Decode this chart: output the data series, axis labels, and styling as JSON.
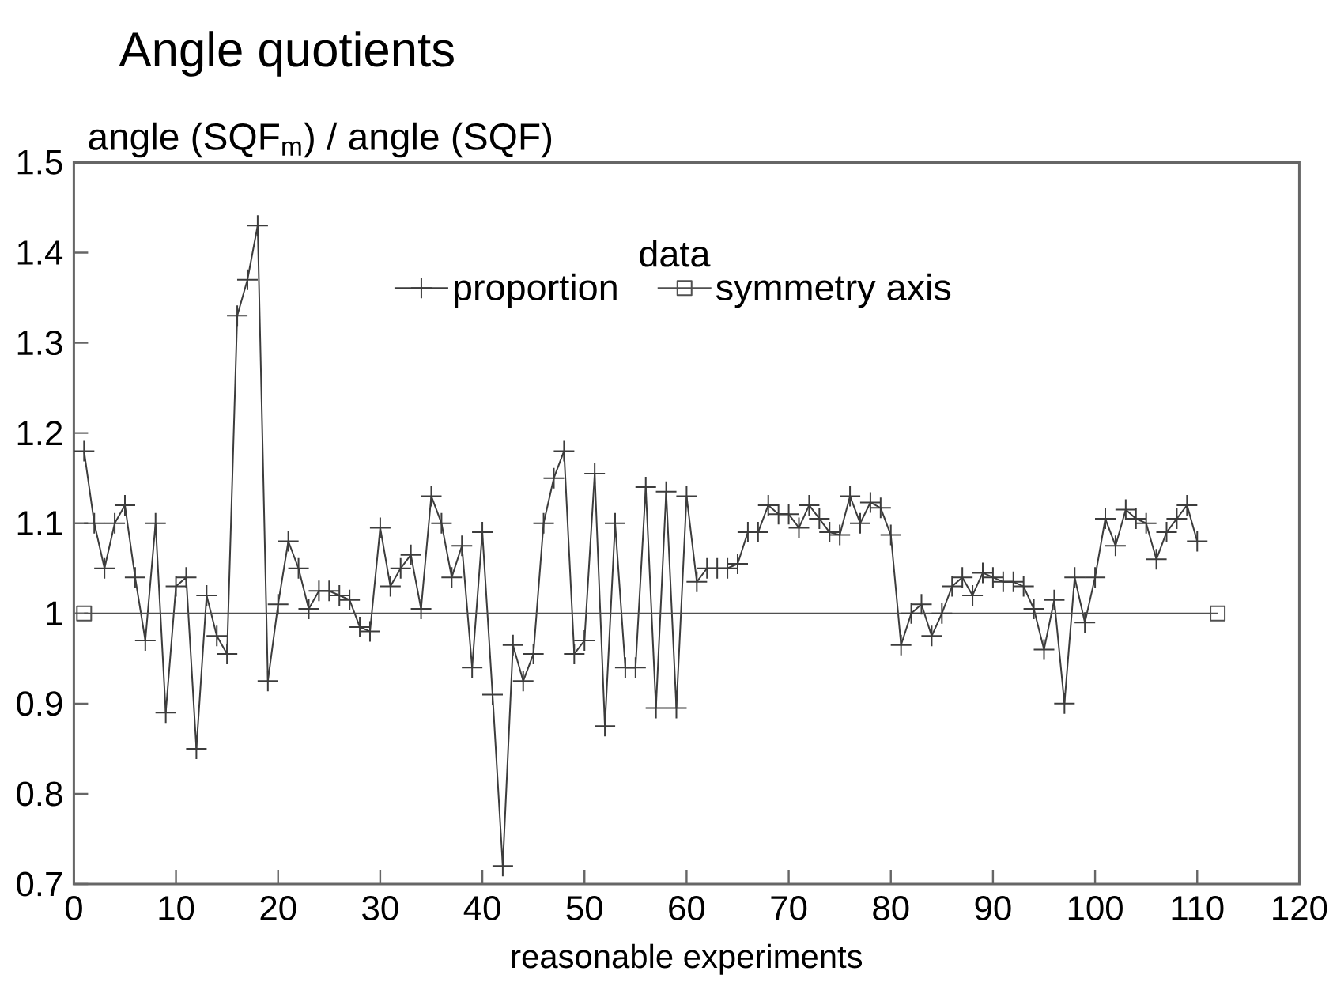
{
  "chart_data": {
    "type": "line",
    "title": "Angle quotients",
    "xlabel": "reasonable experiments",
    "ylabel": "angle (SQF$_{m}$) / angle (SQF)",
    "legend_title": "data",
    "legend": "top",
    "xlim": [
      0,
      120
    ],
    "ylim": [
      0.7,
      1.5
    ],
    "xticks": [
      0,
      10,
      20,
      30,
      40,
      50,
      60,
      70,
      80,
      90,
      100,
      110,
      120
    ],
    "yticks": [
      0.7,
      0.8,
      0.9,
      1,
      1.1,
      1.2,
      1.3,
      1.4,
      1.5
    ],
    "series": [
      {
        "name": "proportion",
        "color": "#3c3c3c",
        "marker": "cross",
        "x": [
          1,
          2,
          3,
          4,
          5,
          6,
          7,
          8,
          9,
          10,
          11,
          12,
          13,
          14,
          15,
          16,
          17,
          18,
          19,
          20,
          21,
          22,
          23,
          24,
          25,
          26,
          27,
          28,
          29,
          30,
          31,
          32,
          33,
          34,
          35,
          36,
          37,
          38,
          39,
          40,
          41,
          42,
          43,
          44,
          45,
          46,
          47,
          48,
          49,
          50,
          51,
          52,
          53,
          54,
          55,
          56,
          57,
          58,
          59,
          60,
          61,
          62,
          63,
          64,
          65,
          66,
          67,
          68,
          69,
          70,
          71,
          72,
          73,
          74,
          75,
          76,
          77,
          78,
          79,
          80,
          81,
          82,
          83,
          84,
          85,
          86,
          87,
          88,
          89,
          90,
          91,
          92,
          93,
          94,
          95,
          96,
          97,
          98,
          99,
          100,
          101,
          102,
          103,
          104,
          105,
          106,
          107,
          108,
          109,
          110
        ],
        "values": [
          1.18,
          1.1,
          1.05,
          1.1,
          1.12,
          1.04,
          0.97,
          1.1,
          0.89,
          1.03,
          1.04,
          0.85,
          1.02,
          0.975,
          0.955,
          1.33,
          1.37,
          1.43,
          0.925,
          1.01,
          1.08,
          1.05,
          1.005,
          1.025,
          1.025,
          1.02,
          1.015,
          0.985,
          0.98,
          1.095,
          1.03,
          1.05,
          1.065,
          1.005,
          1.13,
          1.1,
          1.04,
          1.075,
          0.94,
          1.09,
          0.91,
          0.72,
          0.965,
          0.925,
          0.955,
          1.1,
          1.15,
          1.18,
          0.955,
          0.97,
          1.155,
          0.875,
          1.1,
          0.94,
          0.94,
          1.14,
          0.895,
          1.135,
          0.895,
          1.13,
          1.035,
          1.05,
          1.05,
          1.05,
          1.055,
          1.09,
          1.09,
          1.12,
          1.11,
          1.11,
          1.095,
          1.12,
          1.105,
          1.09,
          1.087,
          1.13,
          1.1,
          1.123,
          1.117,
          1.087,
          0.965,
          1.0,
          1.01,
          0.975,
          1.0,
          1.03,
          1.04,
          1.02,
          1.045,
          1.04,
          1.035,
          1.035,
          1.03,
          1.005,
          0.96,
          1.015,
          0.9,
          1.04,
          0.99,
          1.04,
          1.105,
          1.075,
          1.115,
          1.105,
          1.1,
          1.06,
          1.09,
          1.105,
          1.12,
          1.08
        ]
      },
      {
        "name": "symmetry axis",
        "color": "#505050",
        "marker": "square",
        "x": [
          1,
          112
        ],
        "values": [
          1,
          1
        ]
      }
    ]
  }
}
